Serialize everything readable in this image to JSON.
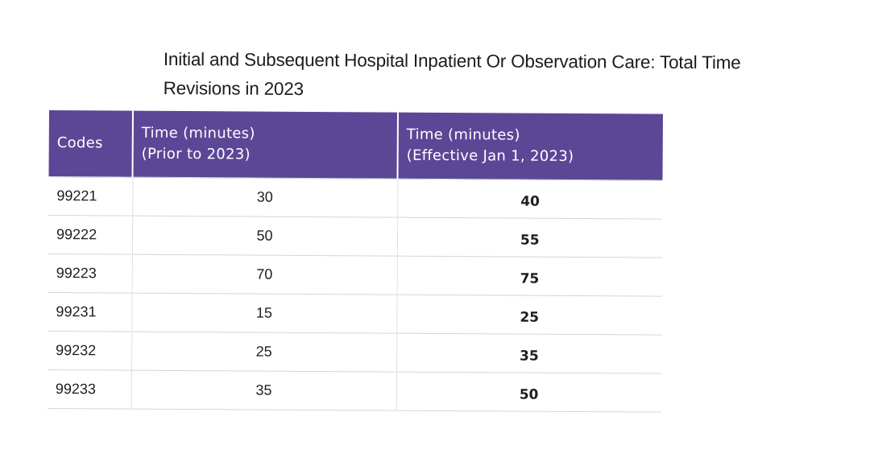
{
  "document": {
    "title_line1": "Initial and Subsequent Hospital Inpatient Or Observation Care: Total Time",
    "title_line2": "Revisions in 2023"
  },
  "table": {
    "header_codes": "Codes",
    "header_prior_line1": "Time (minutes)",
    "header_prior_line2": "(Prior to 2023)",
    "header_effective_line1": "Time (minutes)",
    "header_effective_line2": "(Effective Jan 1, 2023)",
    "header_color": "#5b4796",
    "rows": [
      {
        "code": "99221",
        "prior": "30",
        "effective": "40"
      },
      {
        "code": "99222",
        "prior": "50",
        "effective": "55"
      },
      {
        "code": "99223",
        "prior": "70",
        "effective": "75"
      },
      {
        "code": "99231",
        "prior": "15",
        "effective": "25"
      },
      {
        "code": "99232",
        "prior": "25",
        "effective": "35"
      },
      {
        "code": "99233",
        "prior": "35",
        "effective": "50"
      }
    ]
  }
}
